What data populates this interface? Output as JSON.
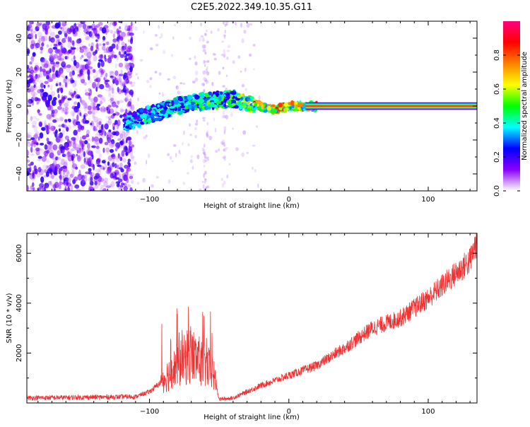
{
  "title": "C2E5.2022.349.10.35.G11",
  "chart_data": [
    {
      "type": "heatmap",
      "xlabel": "Height of straight line (km)",
      "ylabel": "Frequency (Hz)",
      "xlim": [
        -188,
        135
      ],
      "ylim": [
        -50,
        50
      ],
      "x_ticks": [
        -100,
        0,
        100
      ],
      "y_ticks": [
        -40,
        -20,
        0,
        20,
        40
      ],
      "colorbar": {
        "label": "Normalized spectral amplitude",
        "range": [
          0.0,
          1.0
        ],
        "ticks": [
          0.0,
          0.2,
          0.4,
          0.6,
          0.8
        ],
        "tick_labels": [
          "0.0",
          "0.2",
          "0.4",
          "0.6",
          "0.8"
        ],
        "colormap": [
          "#ffffff",
          "#8a00ff",
          "#0000ff",
          "#00ffff",
          "#00ff00",
          "#ffff00",
          "#ff8000",
          "#ff0000",
          "#ff0080"
        ]
      },
      "signal_ridge": {
        "x": [
          -118,
          -100,
          -80,
          -60,
          -40,
          -30,
          -20,
          -10,
          0,
          10,
          20,
          135
        ],
        "freq_hz": [
          -10,
          -5,
          0,
          3,
          4,
          2,
          0,
          -2,
          0,
          0,
          0,
          0
        ],
        "peak_amplitude": [
          0.4,
          0.45,
          0.5,
          0.55,
          0.55,
          0.75,
          0.85,
          0.85,
          0.9,
          0.9,
          0.95,
          0.95
        ]
      },
      "noise_region_x": [
        -188,
        -115
      ]
    },
    {
      "type": "line",
      "xlabel": "Height of straight line (km)",
      "ylabel": "SNR (10 * v/v)",
      "xlim": [
        -188,
        135
      ],
      "ylim": [
        0,
        6800
      ],
      "x_ticks": [
        -100,
        0,
        100
      ],
      "y_ticks": [
        2000,
        4000,
        6000
      ],
      "color": "#ee3333",
      "series": [
        {
          "x": [
            -188,
            -110,
            -100,
            -90,
            -80,
            -75,
            -70,
            -65,
            -60,
            -55,
            -52,
            -50,
            -40,
            -20,
            0,
            20,
            40,
            50,
            60,
            80,
            100,
            120,
            130,
            135
          ],
          "values": [
            200,
            250,
            450,
            900,
            1400,
            1600,
            1800,
            1600,
            1400,
            1200,
            700,
            150,
            200,
            700,
            1100,
            1500,
            2200,
            2600,
            3000,
            3400,
            4200,
            5200,
            5700,
            6500
          ]
        }
      ]
    }
  ]
}
